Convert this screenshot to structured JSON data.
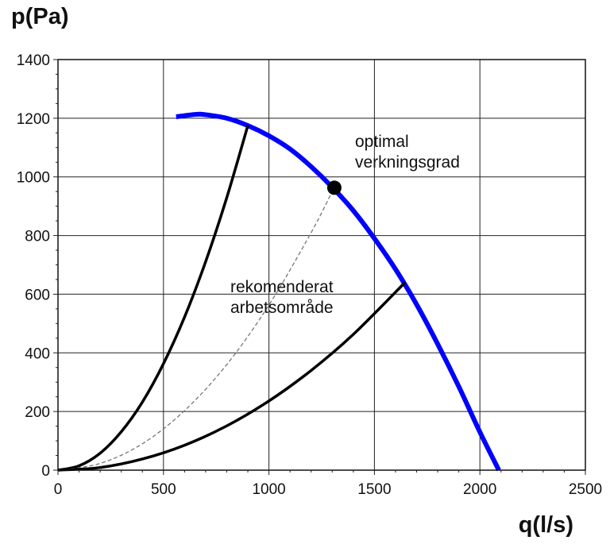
{
  "chart_data": {
    "type": "line",
    "title": "",
    "xlabel": "q(l/s)",
    "ylabel": "p(Pa)",
    "xlim": [
      0,
      2500
    ],
    "ylim": [
      0,
      1400
    ],
    "x_ticks": [
      0,
      500,
      1000,
      1500,
      2000,
      2500
    ],
    "y_ticks": [
      0,
      200,
      400,
      600,
      800,
      1000,
      1200,
      1400
    ],
    "grid": true,
    "series": [
      {
        "color": "#0000ff",
        "style": "solid-thick",
        "x": [
          560,
          650,
          700,
          800,
          900,
          1000,
          1100,
          1200,
          1300,
          1400,
          1500,
          1600,
          1700,
          1800,
          1900,
          2000,
          2090
        ],
        "y": [
          1205,
          1213,
          1212,
          1200,
          1175,
          1140,
          1095,
          1035,
          965,
          885,
          790,
          685,
          565,
          430,
          285,
          130,
          0
        ]
      },
      {
        "color": "#000000",
        "style": "solid",
        "x": [
          0,
          100,
          200,
          300,
          400,
          500,
          600,
          700,
          800,
          900
        ],
        "y": [
          0,
          15,
          58,
          131,
          232,
          363,
          522,
          711,
          929,
          1175
        ]
      },
      {
        "color": "#777777",
        "style": "dashed",
        "x": [
          0,
          200,
          400,
          600,
          800,
          1000,
          1200,
          1310
        ],
        "y": [
          0,
          23,
          90,
          203,
          360,
          563,
          810,
          965
        ]
      },
      {
        "color": "#000000",
        "style": "solid",
        "x": [
          0,
          200,
          400,
          600,
          800,
          1000,
          1200,
          1400,
          1645
        ],
        "y": [
          0,
          9,
          38,
          85,
          151,
          236,
          340,
          463,
          640
        ]
      }
    ],
    "points": [
      {
        "x": 1310,
        "y": 963,
        "color": "#000000"
      }
    ],
    "annotations": [
      {
        "lines": [
          "optimal",
          "verkningsgrad"
        ]
      },
      {
        "lines": [
          "rekomenderat",
          "arbetsområde"
        ]
      }
    ]
  }
}
